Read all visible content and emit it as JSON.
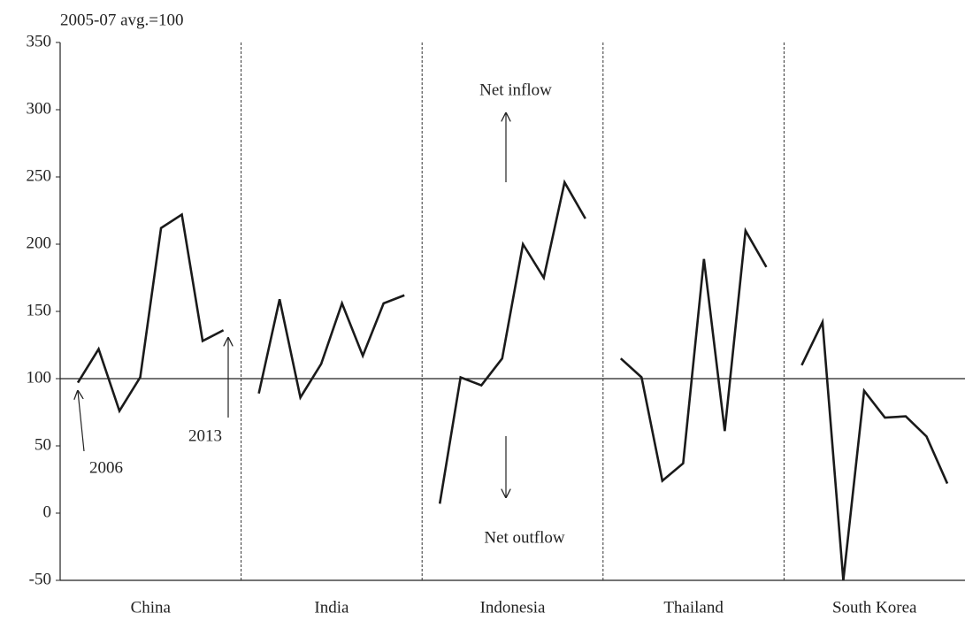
{
  "chart_data": {
    "type": "line",
    "subtitle": "2005-07 avg.=100",
    "panels": [
      {
        "name": "China",
        "values": [
          97,
          122,
          76,
          101,
          212,
          222,
          128,
          136
        ]
      },
      {
        "name": "India",
        "values": [
          89,
          159,
          86,
          111,
          156,
          117,
          156,
          162
        ]
      },
      {
        "name": "Indonesia",
        "values": [
          7,
          101,
          95,
          115,
          200,
          175,
          246,
          219
        ]
      },
      {
        "name": "Thailand",
        "values": [
          115,
          101,
          24,
          37,
          189,
          61,
          210,
          183
        ]
      },
      {
        "name": "South Korea",
        "values": [
          110,
          142,
          -50,
          91,
          71,
          72,
          57,
          22
        ]
      }
    ],
    "color": "#1a1a1a",
    "reference_line": 100,
    "ylim": [
      -50,
      350
    ],
    "yticks": [
      -50,
      0,
      50,
      100,
      150,
      200,
      250,
      300,
      350
    ],
    "annotations": [
      "Net inflow",
      "Net outflow",
      "2006",
      "2013"
    ]
  }
}
